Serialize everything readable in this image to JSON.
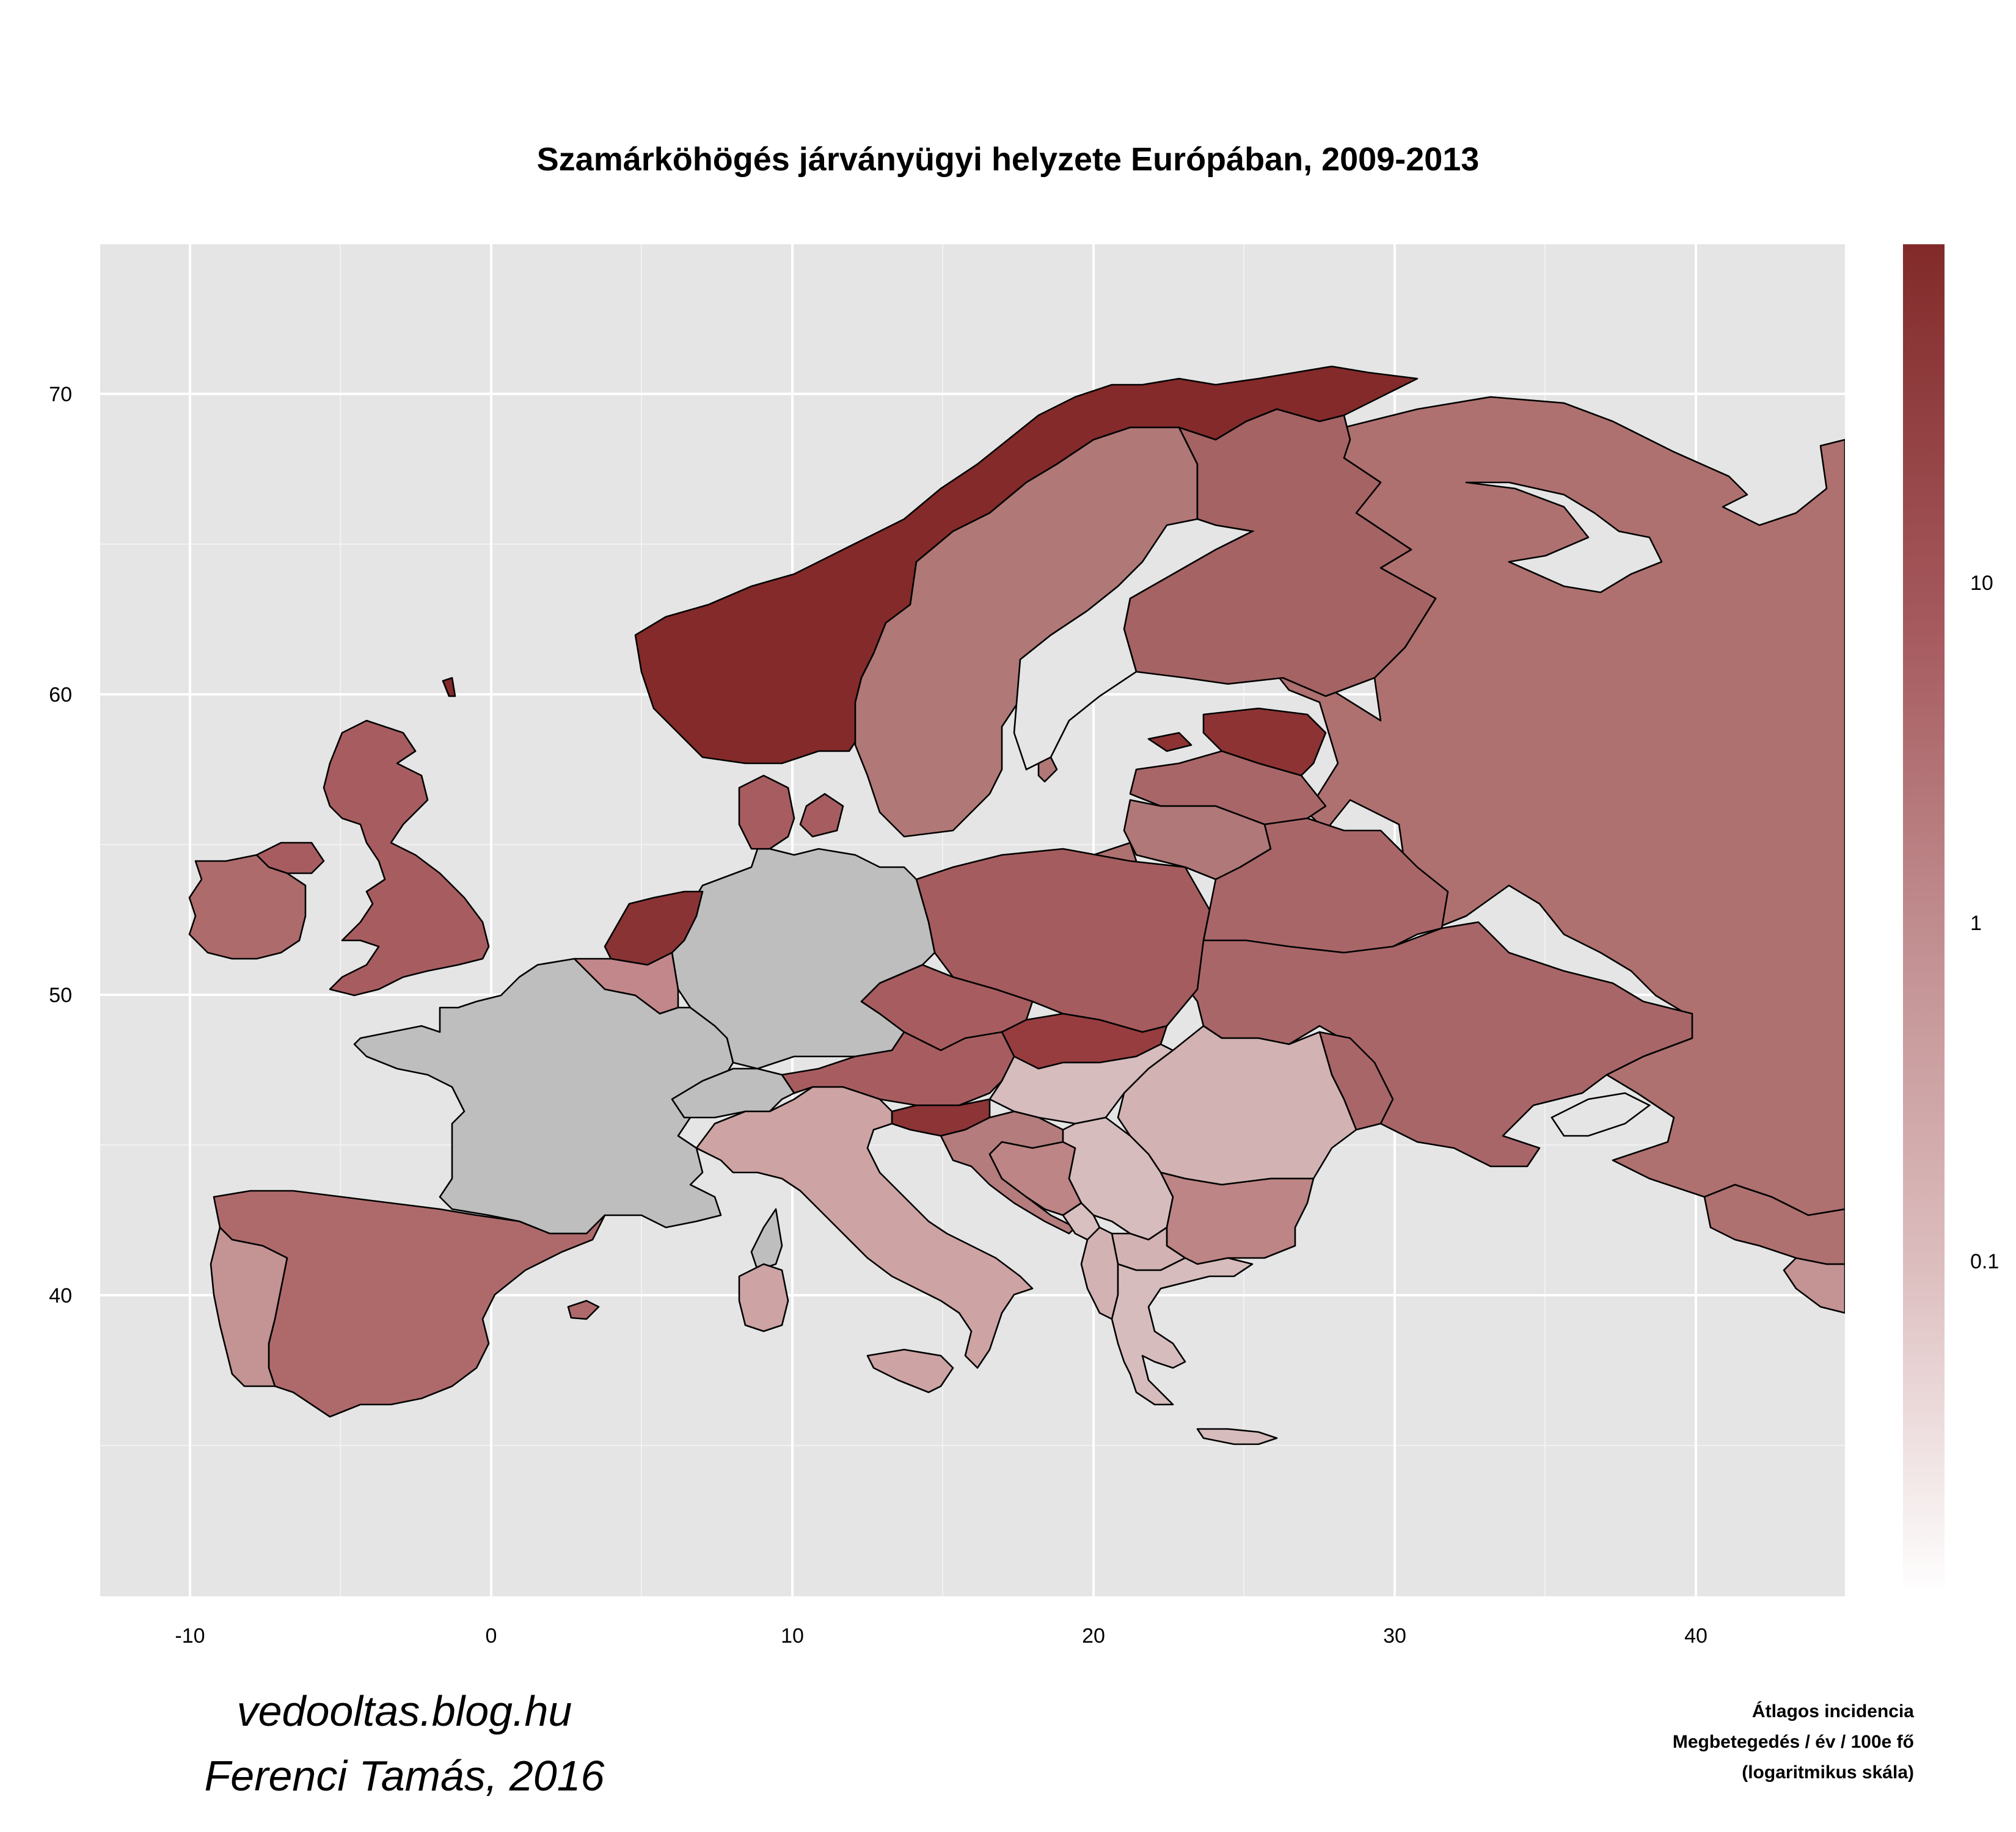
{
  "title": "Szamárköhögés járványügyi helyzete Európában, 2009-2013",
  "x_ticks": [
    "-10",
    "0",
    "10",
    "20",
    "30",
    "40"
  ],
  "y_ticks": [
    "40",
    "50",
    "60",
    "70"
  ],
  "legend": {
    "ticks": [
      "10",
      "1",
      "0.1"
    ],
    "title_lines": [
      "Átlagos incidencia",
      "Megbetegedés / év / 100e fő",
      "(logaritmikus skála)"
    ],
    "color_high": "#822a2a",
    "color_low": "#ffffff",
    "color_missing": "#bebebe"
  },
  "credits": [
    "vedooltas.blog.hu",
    "Ferenci Tamás, 2016"
  ],
  "chart_data": {
    "type": "choropleth",
    "title": "Szamárköhögés járványügyi helyzete Európában, 2009-2013",
    "scale": "log10",
    "x_axis": "longitude",
    "y_axis": "latitude",
    "xlim": [
      -13,
      45
    ],
    "ylim": [
      30,
      75
    ],
    "legend_placement": "right",
    "regions": [
      {
        "country": "Norway",
        "level": 20
      },
      {
        "country": "Sweden",
        "level": 3
      },
      {
        "country": "Finland",
        "level": 5
      },
      {
        "country": "Russia",
        "level": 4
      },
      {
        "country": "Estonia",
        "level": 15
      },
      {
        "country": "Latvia",
        "level": 5
      },
      {
        "country": "Lithuania",
        "level": 3
      },
      {
        "country": "Belarus",
        "level": 4
      },
      {
        "country": "Ukraine",
        "level": 4
      },
      {
        "country": "Poland",
        "level": 6
      },
      {
        "country": "Czech Republic",
        "level": 6
      },
      {
        "country": "Slovakia",
        "level": 8
      },
      {
        "country": "Austria",
        "level": 5
      },
      {
        "country": "Slovenia",
        "level": 10
      },
      {
        "country": "Croatia",
        "level": 3
      },
      {
        "country": "Hungary",
        "level": 0.2
      },
      {
        "country": "Romania",
        "level": 0.3
      },
      {
        "country": "Moldova",
        "level": 3
      },
      {
        "country": "Bulgaria",
        "level": 1.5
      },
      {
        "country": "Serbia",
        "level": 0.5
      },
      {
        "country": "Bosnia and Herzegovina",
        "level": 2
      },
      {
        "country": "Greece",
        "level": 0.4
      },
      {
        "country": "Macedonia",
        "level": 0.6
      },
      {
        "country": "Albania",
        "level": 0.6
      },
      {
        "country": "Italy",
        "level": 0.8
      },
      {
        "country": "Switzerland",
        "level": null
      },
      {
        "country": "Germany",
        "level": null
      },
      {
        "country": "France",
        "level": null
      },
      {
        "country": "Spain",
        "level": 4
      },
      {
        "country": "Portugal",
        "level": 1.5
      },
      {
        "country": "United Kingdom",
        "level": 5
      },
      {
        "country": "Ireland",
        "level": 5
      },
      {
        "country": "Denmark",
        "level": 5
      },
      {
        "country": "Netherlands",
        "level": 15
      },
      {
        "country": "Belgium",
        "level": 2
      },
      {
        "country": "Turkey",
        "level": 0.8
      }
    ]
  }
}
